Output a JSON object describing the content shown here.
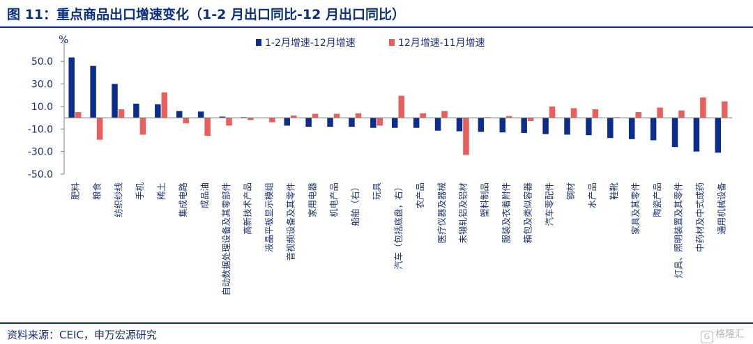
{
  "header": {
    "title": "图 11：重点商品出口增速变化（1-2 月出口同比-12 月出口同比）"
  },
  "footer": {
    "source": "资料来源：CEIC，申万宏源研究",
    "watermark": "格隆汇"
  },
  "colors": {
    "series1": "#0c2e8a",
    "series2": "#e8605e",
    "text": "#1c2f6e",
    "axis": "#7f7f7f"
  },
  "chart_data": {
    "type": "bar",
    "unit": "%",
    "ylim": [
      -50,
      60
    ],
    "yticks": [
      "50.0",
      "30.0",
      "10.0",
      "-10.0",
      "-30.0",
      "-50.0"
    ],
    "ytick_values": [
      50,
      30,
      10,
      -10,
      -30,
      -50
    ],
    "legend_position": "top",
    "categories": [
      "肥料",
      "粮食",
      "纺织纱线",
      "手机",
      "稀土",
      "集成电路",
      "成品油",
      "自动数据处理设备及其零部件",
      "高新技术产品",
      "液晶平板显示模组",
      "音视频设备及其零件",
      "家用电器",
      "机电产品",
      "船舶（右）",
      "玩具",
      "汽车（包括底盘，右）",
      "农产品",
      "医疗仪器及器械",
      "未锻轧铝及铝材",
      "塑料制品",
      "服装及衣着附件",
      "箱包及类似容器",
      "汽车零配件",
      "钢材",
      "水产品",
      "鞋靴",
      "家具及其零件",
      "陶瓷产品",
      "灯具、照明装置及其零件",
      "中药材及中式成药",
      "通用机械设备"
    ],
    "series": [
      {
        "name": "1-2月增速-12月增速",
        "values": [
          53.5,
          46,
          30,
          12.5,
          12,
          6,
          5.5,
          1,
          0.5,
          0,
          -7,
          -8,
          -8,
          -8,
          -9,
          -9,
          -9,
          -11.5,
          -12,
          -12.5,
          -13,
          -13.5,
          -14.5,
          -15,
          -15.5,
          -18,
          -19,
          -20,
          -26,
          -30,
          -31
        ]
      },
      {
        "name": "12月增速-11月增速",
        "values": [
          5,
          -19.5,
          7.5,
          -15,
          22.5,
          -5,
          -16,
          -7,
          -2,
          -4,
          2,
          3.5,
          3.5,
          4,
          -7,
          19.5,
          4,
          6,
          -33,
          0.5,
          1.5,
          -3,
          10,
          8.5,
          7.5,
          0.5,
          5,
          9,
          6.5,
          18,
          14.5
        ]
      }
    ]
  }
}
